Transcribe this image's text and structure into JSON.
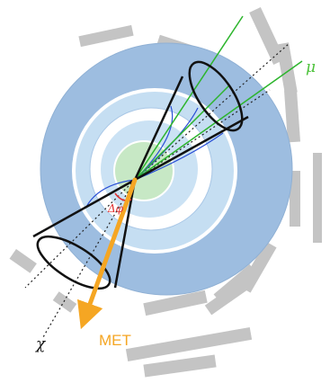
{
  "labels": {
    "muon": "μ",
    "chi": "χ",
    "met": "MET",
    "delta_phi": "Δφ"
  },
  "colors": {
    "outer_detector": "#9dbde0",
    "inner_ring": "#c5def2",
    "core": "#c7e8c5",
    "muon_track": "#2db52d",
    "curved_track": "#2a4fd6",
    "met_arrow": "#f5a623",
    "segment": "#bdbdbd",
    "cone": "#111111",
    "angle_mark": "#e03030"
  }
}
